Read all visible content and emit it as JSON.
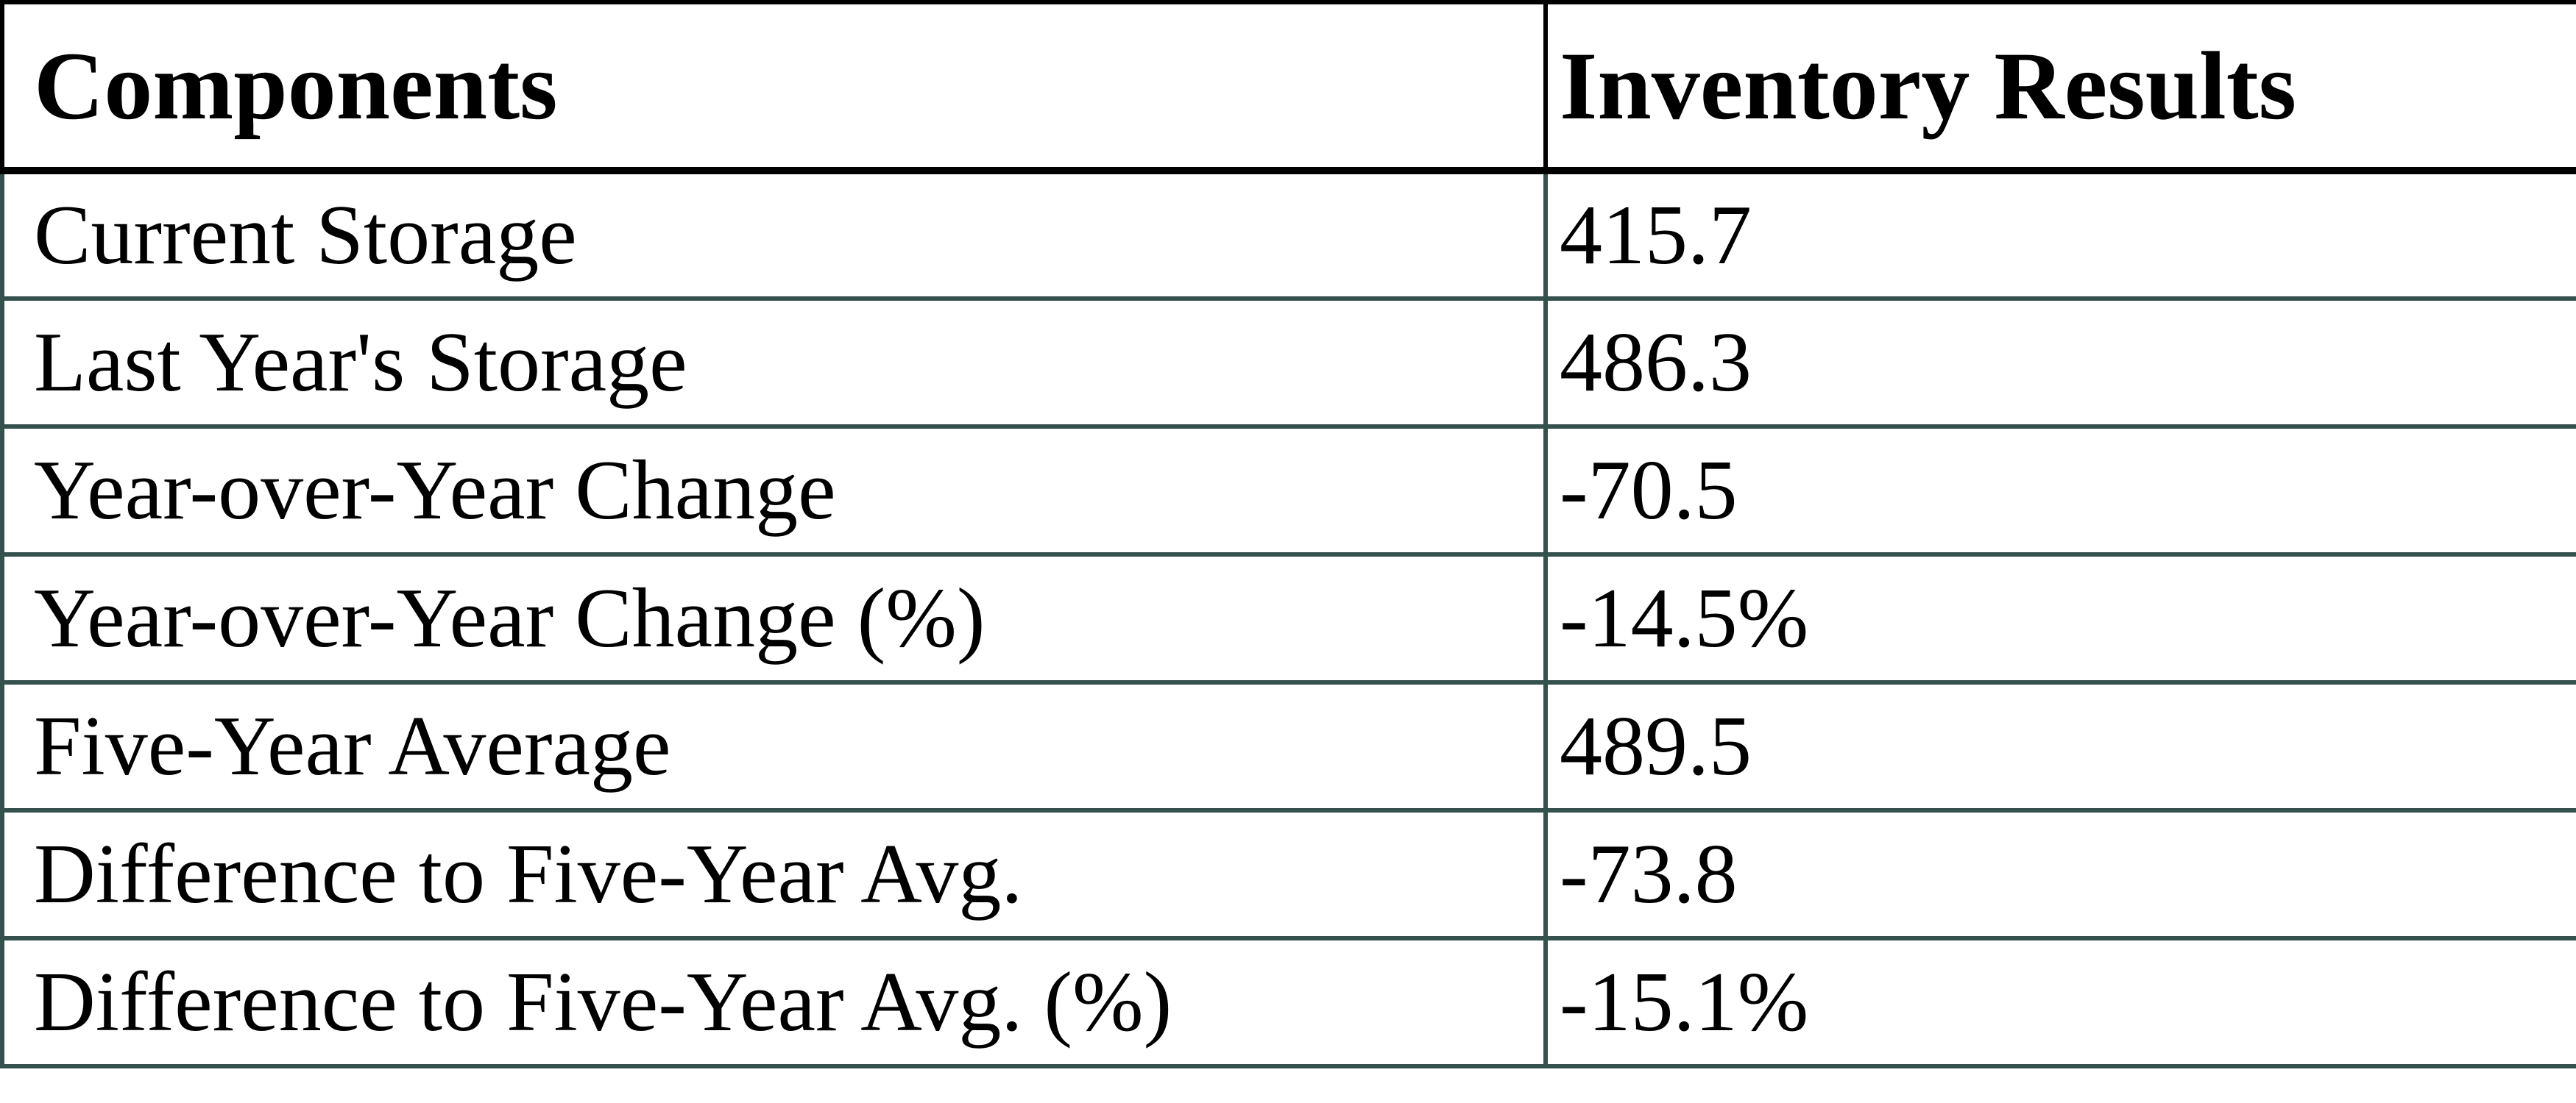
{
  "table": {
    "columns": [
      "Components",
      "Inventory Results"
    ],
    "rows": [
      {
        "label": "Current Storage",
        "value": "415.7"
      },
      {
        "label": "Last Year's Storage",
        "value": "486.3"
      },
      {
        "label": "Year-over-Year Change",
        "value": "-70.5"
      },
      {
        "label": "Year-over-Year Change (%)",
        "value": "-14.5%"
      },
      {
        "label": "Five-Year Average",
        "value": "489.5"
      },
      {
        "label": "Difference to Five-Year Avg.",
        "value": "-73.8"
      },
      {
        "label": "Difference to Five-Year Avg. (%)",
        "value": "-15.1%"
      }
    ]
  },
  "colors": {
    "header_border": "#000000",
    "body_border": "#35514d",
    "text": "#000000",
    "background": "#ffffff"
  },
  "chart_data": {
    "type": "table",
    "columns": [
      "Components",
      "Inventory Results"
    ],
    "rows": [
      [
        "Current Storage",
        415.7
      ],
      [
        "Last Year's Storage",
        486.3
      ],
      [
        "Year-over-Year Change",
        -70.5
      ],
      [
        "Year-over-Year Change (%)",
        "-14.5%"
      ],
      [
        "Five-Year Average",
        489.5
      ],
      [
        "Difference to Five-Year Avg.",
        -73.8
      ],
      [
        "Difference to Five-Year Avg. (%)",
        "-15.1%"
      ]
    ]
  }
}
